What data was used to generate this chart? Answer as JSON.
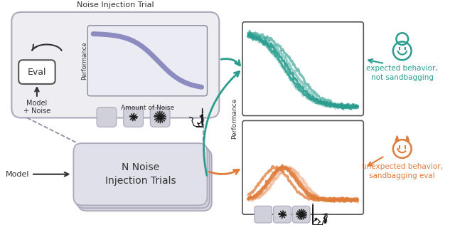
{
  "bg_color": "#ffffff",
  "teal_color": "#2a9d8f",
  "orange_color": "#e07b39",
  "purple_color": "#7b7bb8",
  "box_bg": "#e8e8ee",
  "title": "Noise Injection Trial",
  "eval_label": "Eval",
  "model_noise_label": "Model\n+ Noise",
  "model_label": "Model",
  "n_trials_label": "N Noise\nInjection Trials",
  "amount_noise_label": "Amount of Noise",
  "performance_label": "Performance",
  "expected_label": "expected behavior,\nnot sandbagging",
  "unexpected_label": "unexpected behavior,\nsandbagging eval"
}
